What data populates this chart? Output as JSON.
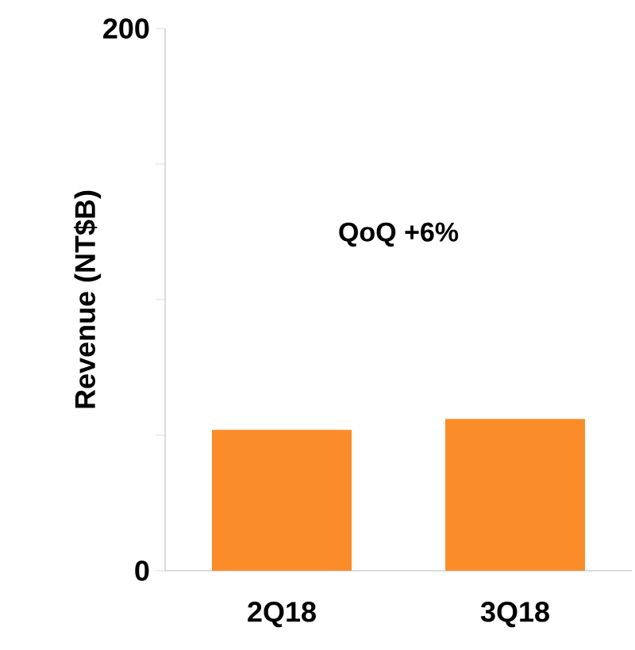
{
  "chart_data": {
    "type": "bar",
    "ylabel": "Revenue (NT$B)",
    "categories": [
      "2Q18",
      "3Q18"
    ],
    "values": [
      52,
      56
    ],
    "color": "#fb8c2a",
    "ylim": [
      0,
      200
    ],
    "yticks": [
      0,
      {
        "value": 50,
        "label": null
      },
      {
        "value": 100,
        "label": null
      },
      {
        "value": 150,
        "label": null
      },
      200
    ],
    "annotations": [
      "QoQ +6%"
    ],
    "grid": false
  }
}
